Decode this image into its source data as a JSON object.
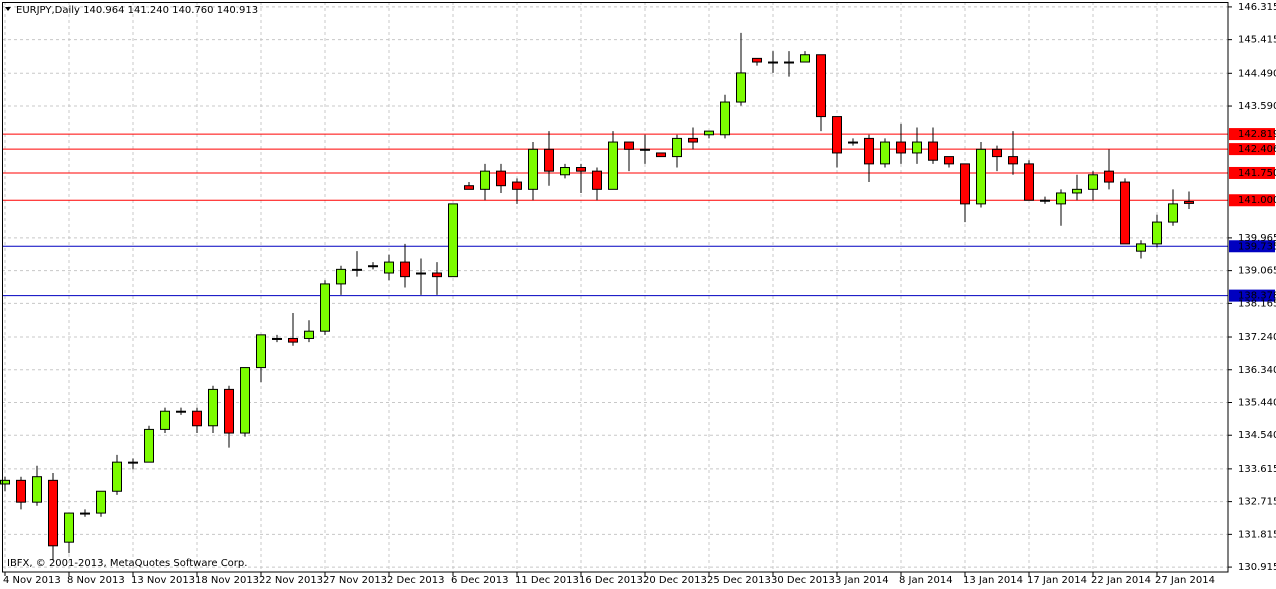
{
  "chart_data": {
    "type": "candlestick",
    "title": "EURJPY,Daily  140.964 141.240 140.760 140.913",
    "credit": "IBFX, © 2001-2013, MetaQuotes Software Corp.",
    "up_color": "#7cfc00",
    "down_color": "#ff0000",
    "grid": true,
    "categories": [
      "4 Nov 2013",
      null,
      null,
      null,
      "8 Nov 2013",
      null,
      null,
      null,
      "13 Nov 2013",
      null,
      null,
      null,
      "18 Nov 2013",
      null,
      null,
      null,
      "22 Nov 2013",
      null,
      null,
      null,
      "27 Nov 2013",
      null,
      null,
      null,
      "2 Dec 2013",
      null,
      null,
      null,
      "6 Dec 2013",
      null,
      null,
      null,
      "11 Dec 2013",
      null,
      null,
      null,
      "16 Dec 2013",
      null,
      null,
      null,
      "20 Dec 2013",
      null,
      null,
      null,
      "25 Dec 2013",
      null,
      null,
      null,
      "30 Dec 2013",
      null,
      null,
      null,
      "3 Jan 2014",
      null,
      null,
      null,
      "8 Jan 2014",
      null,
      null,
      null,
      "13 Jan 2014",
      null,
      null,
      null,
      "17 Jan 2014",
      null,
      null,
      null,
      "22 Jan 2014",
      null,
      null,
      null,
      "27 Jan 2014",
      null,
      null
    ],
    "open": [
      133.2,
      133.3,
      132.7,
      133.3,
      131.6,
      132.4,
      132.4,
      133.0,
      133.8,
      133.8,
      134.7,
      135.2,
      135.2,
      134.8,
      135.8,
      134.6,
      136.4,
      137.2,
      137.2,
      137.2,
      137.4,
      138.7,
      139.1,
      139.2,
      139.0,
      139.3,
      139.0,
      139.0,
      138.9,
      141.4,
      141.3,
      141.8,
      141.5,
      141.3,
      142.4,
      141.7,
      141.9,
      141.8,
      141.3,
      142.6,
      142.4,
      142.3,
      142.2,
      142.7,
      142.8,
      142.8,
      143.7,
      144.9,
      144.8,
      144.8,
      144.8,
      145.0,
      143.3,
      142.6,
      142.7,
      142.0,
      142.6,
      142.3,
      142.6,
      142.2,
      142.0,
      140.9,
      142.4,
      142.2,
      142.0,
      141.0,
      140.9,
      141.2,
      141.3,
      141.8,
      141.5,
      139.6,
      139.8,
      140.4,
      140.964
    ],
    "high": [
      133.4,
      133.4,
      133.7,
      133.5,
      132.4,
      132.5,
      133.0,
      134.0,
      133.9,
      134.8,
      135.3,
      135.3,
      135.3,
      135.9,
      135.9,
      136.4,
      137.3,
      137.3,
      137.9,
      137.7,
      138.8,
      139.2,
      139.6,
      139.3,
      139.5,
      139.8,
      139.4,
      139.3,
      140.9,
      141.5,
      142.0,
      142.0,
      141.6,
      142.6,
      142.9,
      142.0,
      142.0,
      141.9,
      142.9,
      142.6,
      142.8,
      142.3,
      142.8,
      143.0,
      142.9,
      143.9,
      145.6,
      144.9,
      145.1,
      145.1,
      145.1,
      145.0,
      143.3,
      142.7,
      142.8,
      142.7,
      143.1,
      143.0,
      143.0,
      142.2,
      142.0,
      142.6,
      142.5,
      142.9,
      142.1,
      141.1,
      141.3,
      141.7,
      141.8,
      142.4,
      141.6,
      139.9,
      140.6,
      141.3,
      141.24
    ],
    "low": [
      133.0,
      132.5,
      132.6,
      131.1,
      131.3,
      132.3,
      132.3,
      132.9,
      133.6,
      133.8,
      134.6,
      135.1,
      134.6,
      134.6,
      134.2,
      134.5,
      136.0,
      137.1,
      137.0,
      137.1,
      137.3,
      138.4,
      138.9,
      139.1,
      138.8,
      138.6,
      138.4,
      138.4,
      138.9,
      141.3,
      141.0,
      141.2,
      140.9,
      141.0,
      141.4,
      141.6,
      141.2,
      141.0,
      141.3,
      141.8,
      142.0,
      142.2,
      141.9,
      142.4,
      142.7,
      142.7,
      143.6,
      144.7,
      144.5,
      144.4,
      144.8,
      142.9,
      141.9,
      142.5,
      141.5,
      141.9,
      142.0,
      142.0,
      142.0,
      141.9,
      140.4,
      140.8,
      141.8,
      141.7,
      141.0,
      140.9,
      140.3,
      141.0,
      141.0,
      141.3,
      139.8,
      139.4,
      139.7,
      140.3,
      140.76
    ],
    "close": [
      133.3,
      132.7,
      133.4,
      131.5,
      132.4,
      132.4,
      133.0,
      133.8,
      133.8,
      134.7,
      135.2,
      135.2,
      134.8,
      135.8,
      134.6,
      136.4,
      137.3,
      137.2,
      137.1,
      137.4,
      138.7,
      139.1,
      139.1,
      139.2,
      139.3,
      138.9,
      139.0,
      138.9,
      140.9,
      141.3,
      141.8,
      141.4,
      141.3,
      142.4,
      141.8,
      141.9,
      141.8,
      141.3,
      142.6,
      142.4,
      142.4,
      142.2,
      142.7,
      142.6,
      142.9,
      143.7,
      144.5,
      144.8,
      144.8,
      144.8,
      145.0,
      143.3,
      142.3,
      142.6,
      142.0,
      142.6,
      142.3,
      142.6,
      142.1,
      142.0,
      140.9,
      142.4,
      142.2,
      142.0,
      141.0,
      141.0,
      141.2,
      141.3,
      141.7,
      141.5,
      139.8,
      139.8,
      140.4,
      140.9,
      140.913
    ],
    "ylim": [
      130.78,
      146.45
    ],
    "yticks": [
      146.315,
      145.415,
      {
        "value": 144.49,
        "label": "144.490"
      },
      {
        "value": 143.59,
        "label": "143.590"
      },
      139.965,
      139.065,
      138.165,
      {
        "value": 137.24,
        "label": "137.240"
      },
      {
        "value": 136.34,
        "label": "136.340"
      },
      {
        "value": 135.44,
        "label": "135.440"
      },
      {
        "value": 134.54,
        "label": "134.540"
      },
      133.615,
      132.715,
      131.815,
      130.915
    ],
    "levels": [
      {
        "value": 142.819,
        "color": "#ff0000"
      },
      {
        "value": 142.406,
        "color": "#ff0000"
      },
      {
        "value": 141.75,
        "label": "141.750",
        "color": "#ff0000"
      },
      {
        "value": 141,
        "label": "141.000",
        "color": "#ff0000"
      },
      {
        "value": 139.735,
        "color": "#0000c0"
      },
      {
        "value": 138.378,
        "color": "#0000c0"
      }
    ]
  }
}
